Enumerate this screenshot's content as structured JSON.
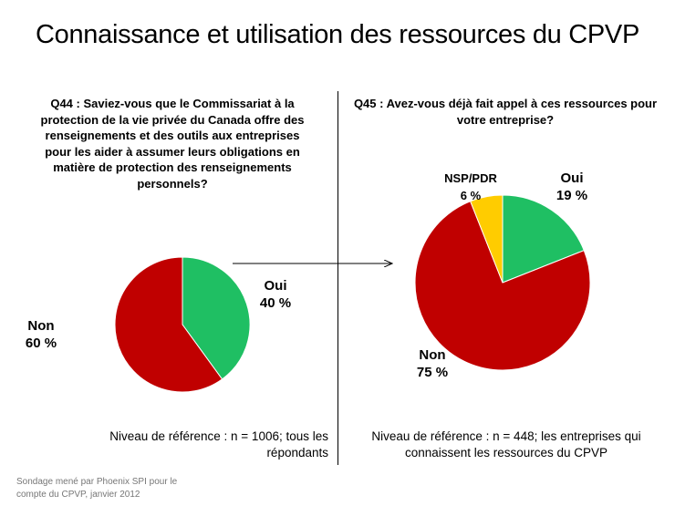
{
  "title": "Connaissance et utilisation des ressources du CPVP",
  "footnote": {
    "line1": "Sondage mené par Phoenix SPI pour le",
    "line2": "compte du CPVP, janvier 2012"
  },
  "chart_data": [
    {
      "type": "pie",
      "title": "Q44 : Saviez-vous que le Commissariat  à la protection de la vie privée du Canada  offre des renseignements et des outils aux entreprises pour les aider à assumer leurs obligations  en matière de protection des renseignements personnels?",
      "title_lines": [
        "Q44 : Saviez-vous que le Commissariat  à la",
        "protection de la vie privée du Canada  offre des",
        "renseignements et des outils aux entreprises",
        "pour les aider à assumer leurs obligations  en",
        "matière de protection des renseignements",
        "personnels?"
      ],
      "slices": [
        {
          "label": "Oui",
          "value": 40,
          "display": "40 %",
          "color": "#1fbf63"
        },
        {
          "label": "Non",
          "value": 60,
          "display": "60 %",
          "color": "#c00000"
        }
      ],
      "base_lines": [
        "Niveau de référence  : n = 1006; tous les",
        "répondants"
      ]
    },
    {
      "type": "pie",
      "title": "Q45 : Avez-vous déjà fait appel à ces ressources pour votre entreprise?",
      "title_lines": [
        "Q45 : Avez-vous déjà fait appel à ces ressources pour",
        "votre entreprise?"
      ],
      "slices": [
        {
          "label": "Oui",
          "value": 19,
          "display": "19 %",
          "color": "#1fbf63"
        },
        {
          "label": "Non",
          "value": 75,
          "display": "75 %",
          "color": "#c00000"
        },
        {
          "label": "NSP/PDR",
          "value": 6,
          "display": "6 %",
          "color": "#ffcc00"
        }
      ],
      "base_lines": [
        "Niveau de référence  : n = 448; les entreprises  qui",
        "connaissent les ressources  du CPVP"
      ]
    }
  ]
}
